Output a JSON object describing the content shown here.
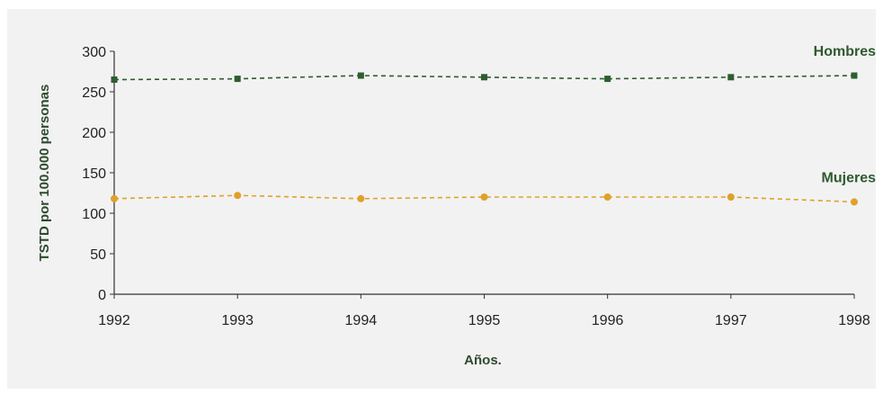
{
  "chart_data": {
    "type": "line",
    "title": "",
    "xlabel": "Años.",
    "ylabel": "TSTD por 100.000 personas",
    "categories": [
      "1992",
      "1993",
      "1994",
      "1995",
      "1996",
      "1997",
      "1998"
    ],
    "ylim": [
      0,
      300
    ],
    "yticks": [
      "0",
      "50",
      "100",
      "150",
      "200",
      "250",
      "300"
    ],
    "grid": false,
    "legend": "inline labels at right",
    "series": [
      {
        "name": "Hombres",
        "color": "#2e5d2e",
        "values": [
          265,
          266,
          270,
          268,
          266,
          268,
          270
        ]
      },
      {
        "name": "Mujeres",
        "color": "#e0a12a",
        "values": [
          118,
          122,
          118,
          120,
          120,
          120,
          114
        ]
      }
    ]
  }
}
